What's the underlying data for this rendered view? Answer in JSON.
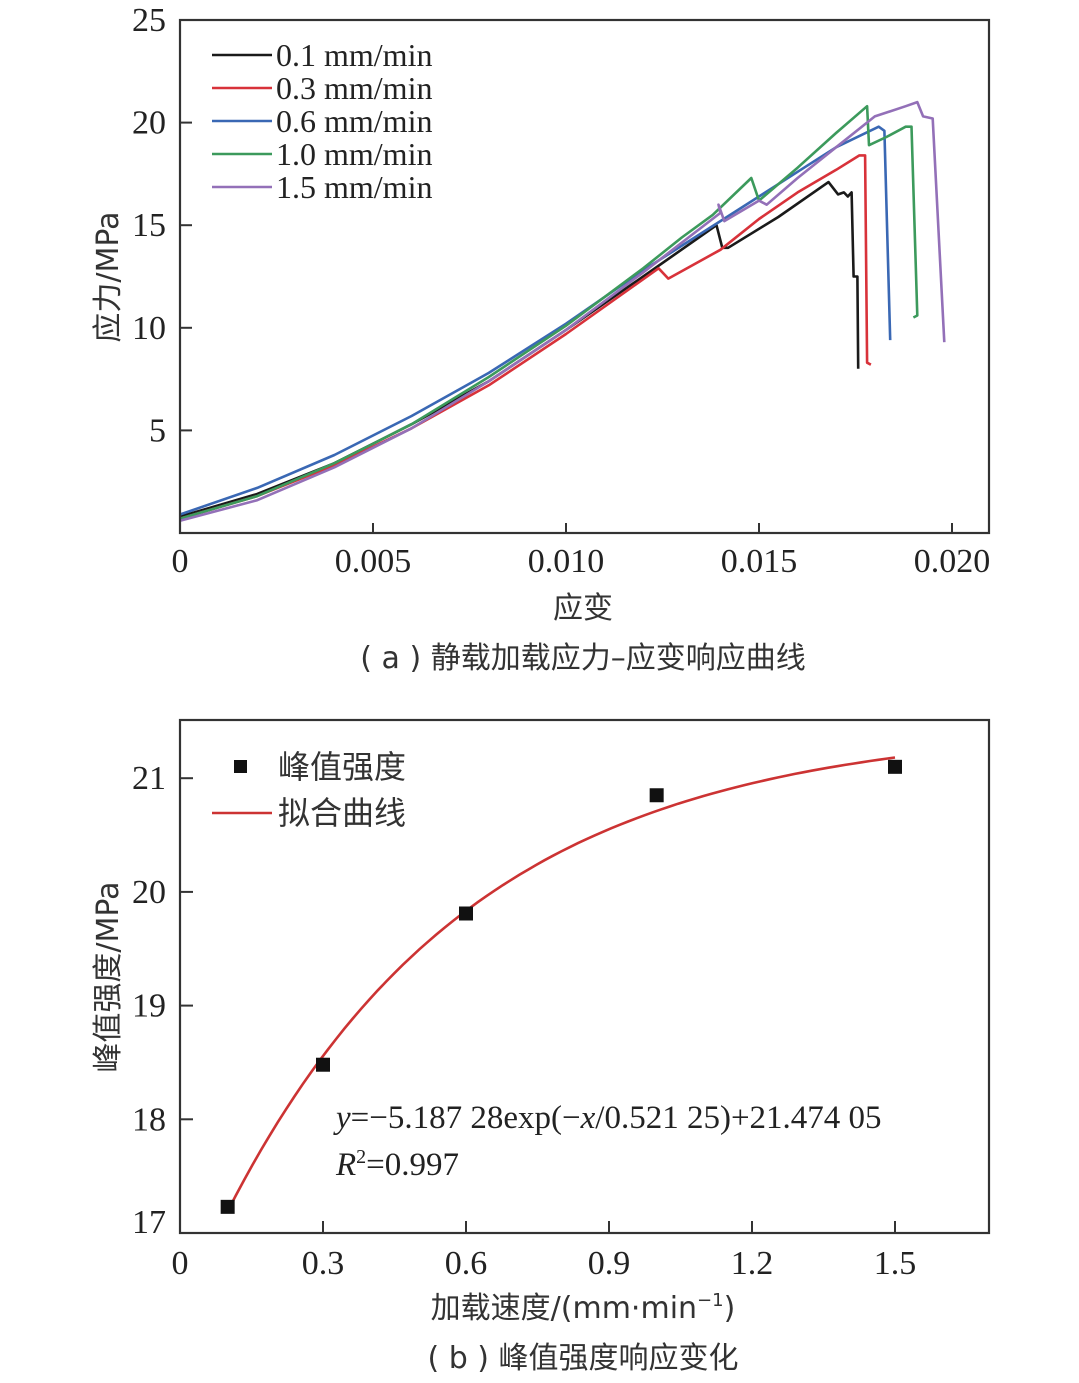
{
  "chart_data": [
    {
      "type": "line",
      "id": "a",
      "caption": "( a ) 静载加载应力–应变响应曲线",
      "xlabel": "应变",
      "ylabel": "应力/MPa",
      "xlim": [
        0,
        0.021
      ],
      "ylim": [
        0,
        25
      ],
      "xticks": [
        0,
        0.005,
        0.01,
        0.015,
        0.02
      ],
      "xtick_labels": [
        "0",
        "0.005",
        "0.010",
        "0.015",
        "0.020"
      ],
      "yticks": [
        5,
        10,
        15,
        20,
        25
      ],
      "ytick_labels": [
        "5",
        "10",
        "15",
        "20",
        "25"
      ],
      "legend_position": "top-left",
      "series": [
        {
          "name": "0.1 mm/min",
          "color": "#1a1a1a",
          "points": [
            [
              0,
              0.8
            ],
            [
              0.002,
              1.9
            ],
            [
              0.004,
              3.4
            ],
            [
              0.006,
              5.3
            ],
            [
              0.008,
              7.4
            ],
            [
              0.01,
              9.9
            ],
            [
              0.012,
              12.5
            ],
            [
              0.0139,
              15.0
            ],
            [
              0.01405,
              13.9
            ],
            [
              0.0142,
              13.9
            ],
            [
              0.0155,
              15.4
            ],
            [
              0.0168,
              17.1
            ],
            [
              0.01705,
              16.5
            ],
            [
              0.0172,
              16.6
            ],
            [
              0.0173,
              16.4
            ],
            [
              0.0174,
              16.6
            ],
            [
              0.01745,
              12.5
            ],
            [
              0.01755,
              12.5
            ],
            [
              0.01757,
              8.0
            ]
          ]
        },
        {
          "name": "0.3 mm/min",
          "color": "#d8323a",
          "points": [
            [
              0,
              0.7
            ],
            [
              0.002,
              1.8
            ],
            [
              0.004,
              3.3
            ],
            [
              0.006,
              5.1
            ],
            [
              0.008,
              7.2
            ],
            [
              0.01,
              9.7
            ],
            [
              0.0124,
              12.9
            ],
            [
              0.01265,
              12.4
            ],
            [
              0.014,
              13.8
            ],
            [
              0.015,
              15.3
            ],
            [
              0.016,
              16.6
            ],
            [
              0.017,
              17.7
            ],
            [
              0.0176,
              18.4
            ],
            [
              0.01775,
              18.4
            ],
            [
              0.0178,
              8.3
            ],
            [
              0.0179,
              8.2
            ]
          ]
        },
        {
          "name": "0.6 mm/min",
          "color": "#3a68b4",
          "points": [
            [
              0,
              0.9
            ],
            [
              0.002,
              2.2
            ],
            [
              0.004,
              3.8
            ],
            [
              0.006,
              5.7
            ],
            [
              0.008,
              7.8
            ],
            [
              0.01,
              10.2
            ],
            [
              0.012,
              12.8
            ],
            [
              0.014,
              15.2
            ],
            [
              0.015,
              16.4
            ],
            [
              0.016,
              17.6
            ],
            [
              0.017,
              18.8
            ],
            [
              0.0181,
              19.8
            ],
            [
              0.01825,
              19.6
            ],
            [
              0.0184,
              9.4
            ]
          ]
        },
        {
          "name": "1.0 mm/min",
          "color": "#3c9a5c",
          "points": [
            [
              0,
              0.7
            ],
            [
              0.002,
              1.8
            ],
            [
              0.004,
              3.4
            ],
            [
              0.006,
              5.3
            ],
            [
              0.008,
              7.6
            ],
            [
              0.01,
              10.1
            ],
            [
              0.012,
              12.9
            ],
            [
              0.013,
              14.4
            ],
            [
              0.0138,
              15.5
            ],
            [
              0.0148,
              17.3
            ],
            [
              0.015,
              16.2
            ],
            [
              0.016,
              17.8
            ],
            [
              0.017,
              19.5
            ],
            [
              0.0178,
              20.8
            ],
            [
              0.01785,
              18.9
            ],
            [
              0.0183,
              19.3
            ],
            [
              0.0188,
              19.8
            ],
            [
              0.01895,
              19.8
            ],
            [
              0.0191,
              10.6
            ],
            [
              0.019,
              10.5
            ]
          ]
        },
        {
          "name": "1.5 mm/min",
          "color": "#9370b8",
          "points": [
            [
              0,
              0.6
            ],
            [
              0.002,
              1.6
            ],
            [
              0.004,
              3.2
            ],
            [
              0.006,
              5.1
            ],
            [
              0.008,
              7.4
            ],
            [
              0.01,
              9.9
            ],
            [
              0.012,
              12.7
            ],
            [
              0.014,
              15.6
            ],
            [
              0.01395,
              16.0
            ],
            [
              0.0141,
              15.2
            ],
            [
              0.015,
              16.2
            ],
            [
              0.0152,
              16.0
            ],
            [
              0.016,
              17.3
            ],
            [
              0.017,
              18.8
            ],
            [
              0.018,
              20.3
            ],
            [
              0.0188,
              20.8
            ],
            [
              0.0191,
              21.0
            ],
            [
              0.01925,
              20.3
            ],
            [
              0.0195,
              20.2
            ],
            [
              0.0198,
              9.3
            ]
          ]
        }
      ]
    },
    {
      "type": "scatter",
      "id": "b",
      "caption": "( b ) 峰值强度响应变化",
      "xlabel": "加载速度/(mm·min",
      "xlabel_sup": "−1",
      "xlabel_end": ")",
      "ylabel": "峰值强度/MPa",
      "xlim": [
        0,
        1.7
      ],
      "ylim": [
        17,
        21.5
      ],
      "xticks": [
        0,
        0.3,
        0.6,
        0.9,
        1.2,
        1.5
      ],
      "xtick_labels": [
        "0",
        "0.3",
        "0.6",
        "0.9",
        "1.2",
        "1.5"
      ],
      "yticks": [
        17,
        18,
        19,
        20,
        21
      ],
      "ytick_labels": [
        "17",
        "18",
        "19",
        "20",
        "21"
      ],
      "legend_position": "top-left",
      "series": [
        {
          "name": "峰值强度",
          "marker": "square",
          "color": "#111111",
          "x": [
            0.1,
            0.3,
            0.6,
            1.0,
            1.5
          ],
          "y": [
            17.23,
            18.48,
            19.81,
            20.85,
            21.1
          ]
        },
        {
          "name": "拟合曲线",
          "marker": "line",
          "color": "#cc3333",
          "fit": {
            "a": -5.18728,
            "t": 0.52125,
            "c": 21.47405,
            "x_range": [
              0.1,
              1.5
            ]
          }
        }
      ],
      "annotation": {
        "equation_parts": [
          "y",
          "=−5.187 28exp(−",
          "x",
          "/0.521 25)+21.474 05"
        ],
        "r2_label": "R",
        "r2_sup": "2",
        "r2_value": "=0.997"
      }
    }
  ]
}
